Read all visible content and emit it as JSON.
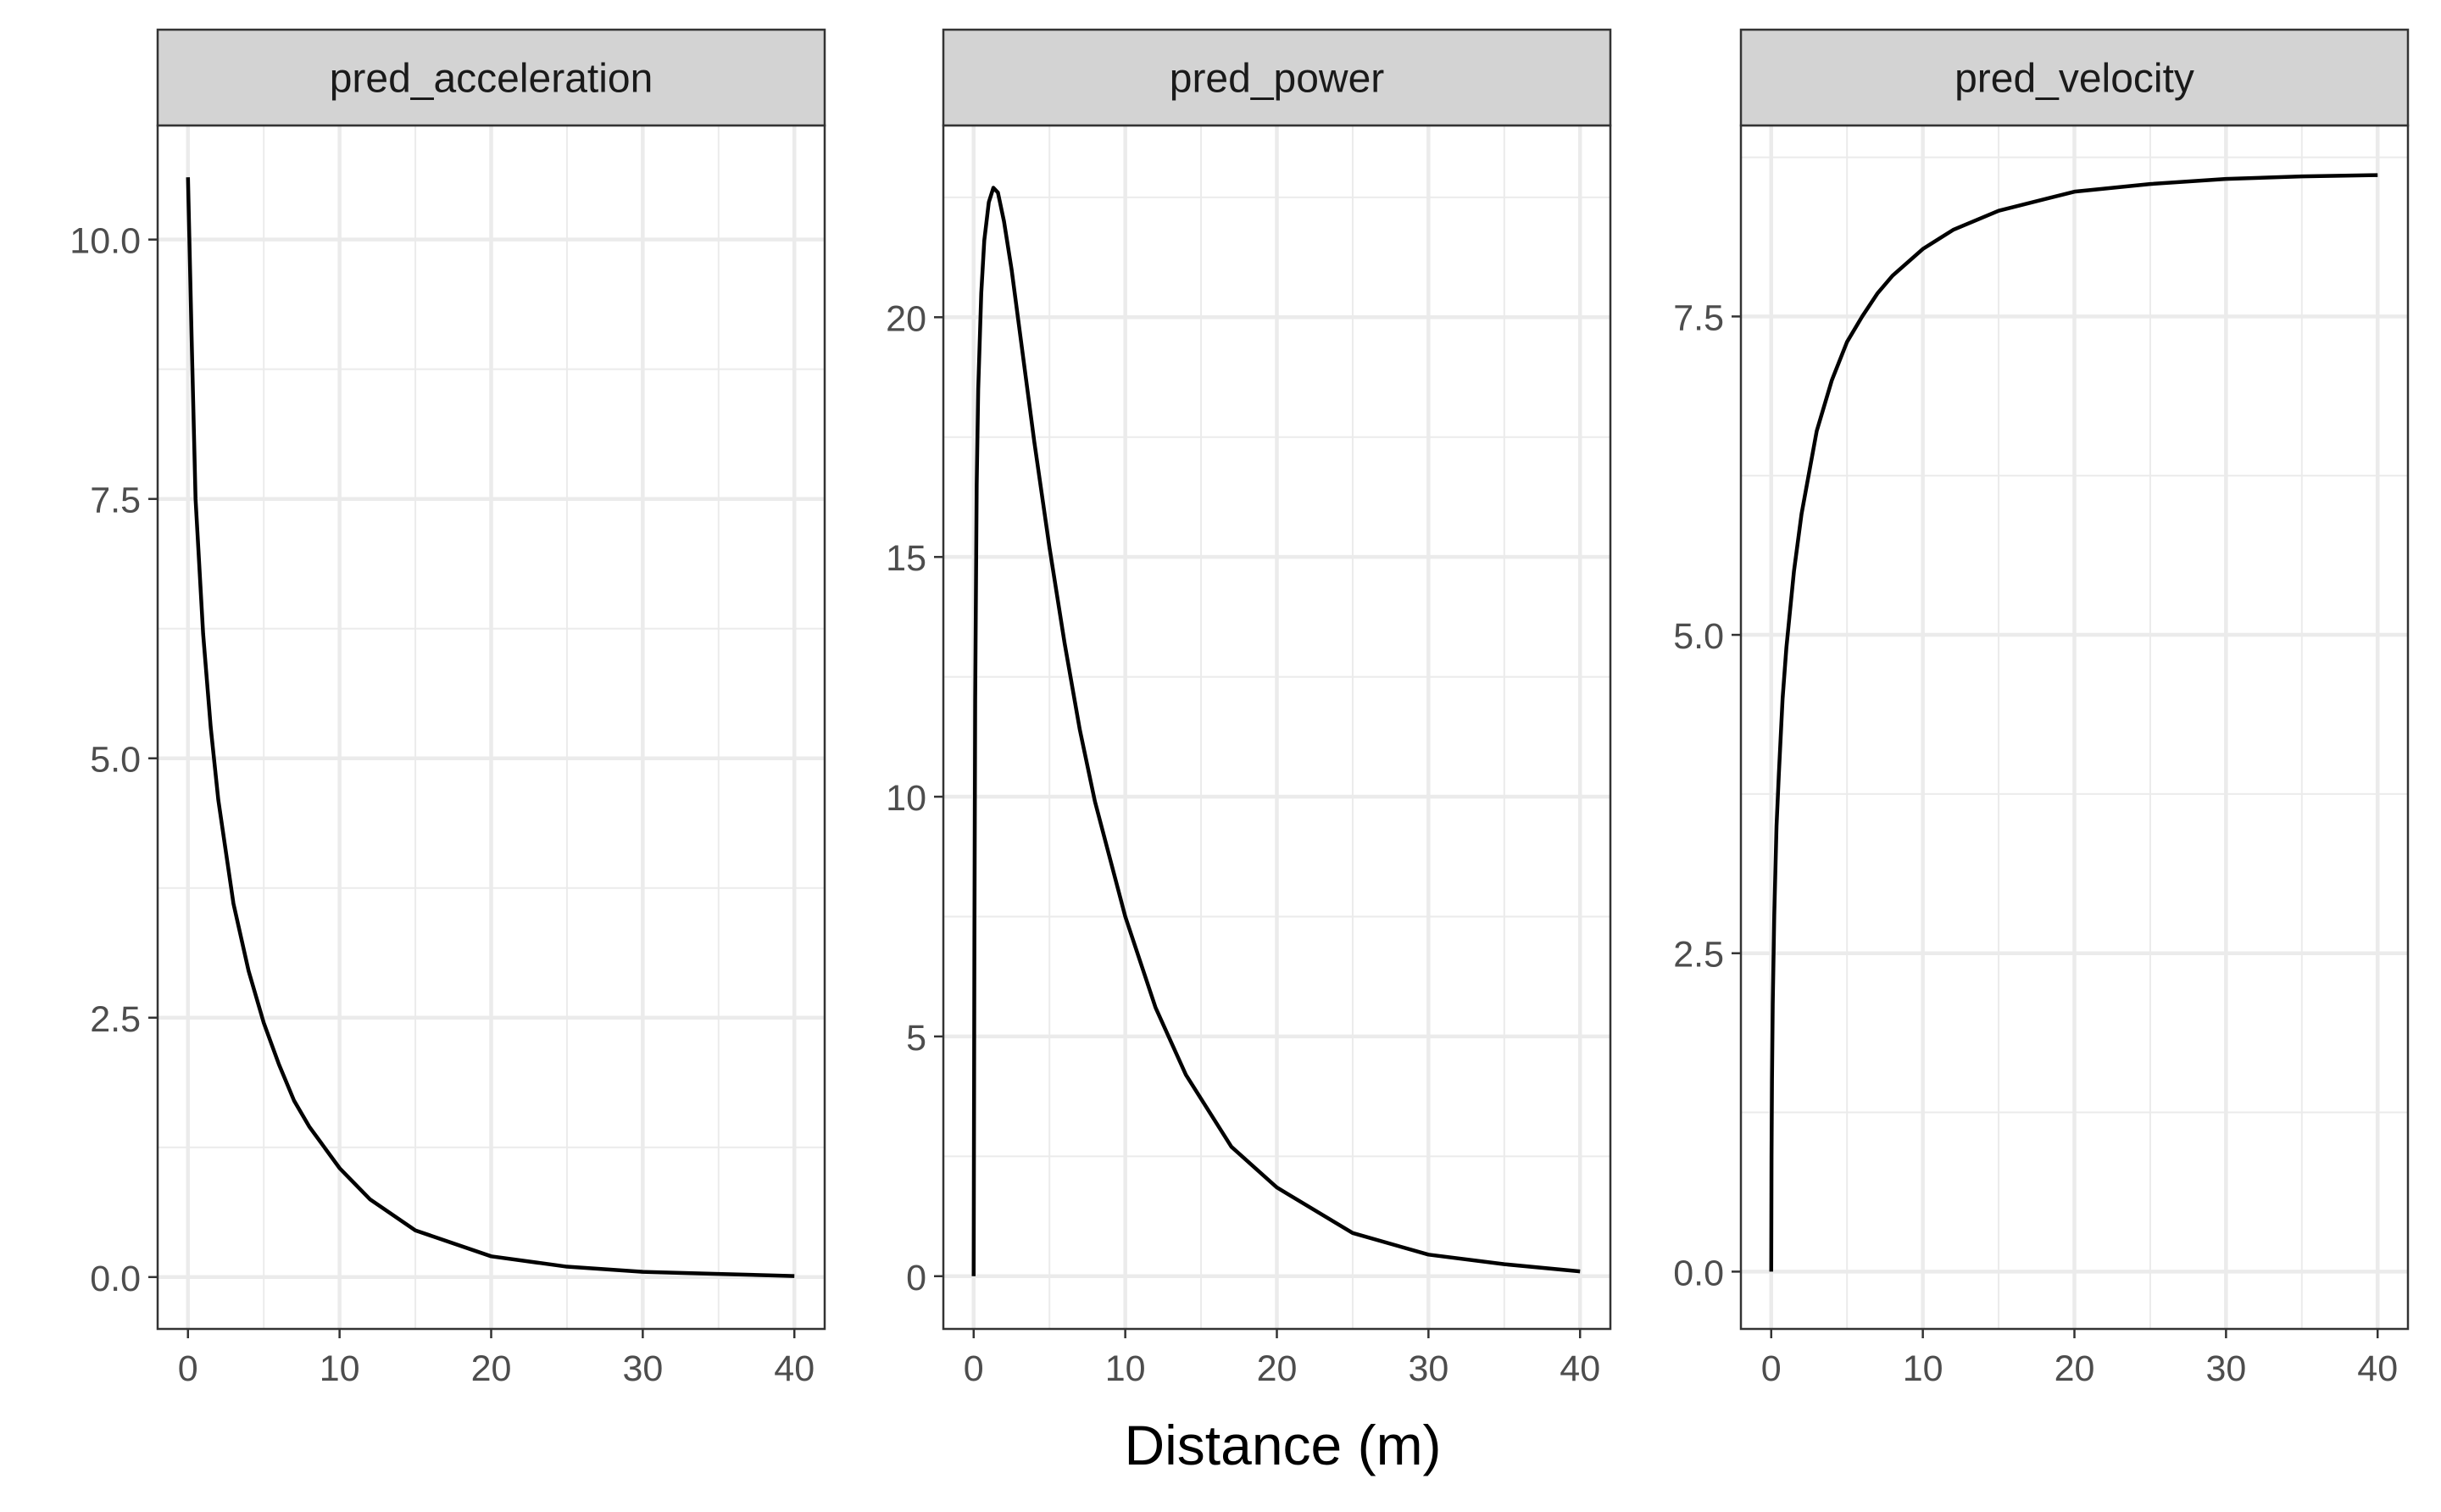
{
  "chart_data": {
    "type": "line",
    "xlabel": "Distance (m)",
    "facets": [
      {
        "strip_label": "pred_acceleration",
        "xlim": [
          -2,
          42
        ],
        "ylim": [
          -0.5,
          11.1
        ],
        "x_ticks": [
          0,
          10,
          20,
          30,
          40
        ],
        "x_tick_labels": [
          "0",
          "10",
          "20",
          "30",
          "40"
        ],
        "y_ticks": [
          0,
          2.5,
          5,
          7.5,
          10
        ],
        "y_tick_labels": [
          "0.0",
          "2.5",
          "5.0",
          "7.5",
          "10.0"
        ],
        "series": [
          {
            "x": [
              0,
              0.25,
              0.5,
              1,
              1.5,
              2,
              3,
              4,
              5,
              6,
              7,
              8,
              10,
              12,
              15,
              20,
              25,
              30,
              35,
              40
            ],
            "y": [
              10.6,
              9.0,
              7.5,
              6.2,
              5.3,
              4.6,
              3.6,
              2.95,
              2.45,
              2.05,
              1.7,
              1.45,
              1.05,
              0.75,
              0.45,
              0.2,
              0.1,
              0.05,
              0.03,
              0.01
            ]
          }
        ]
      },
      {
        "strip_label": "pred_power",
        "xlim": [
          -2,
          42
        ],
        "ylim": [
          -1.1,
          24.0
        ],
        "x_ticks": [
          0,
          10,
          20,
          30,
          40
        ],
        "x_tick_labels": [
          "0",
          "10",
          "20",
          "30",
          "40"
        ],
        "y_ticks": [
          0,
          5,
          10,
          15,
          20
        ],
        "y_tick_labels": [
          "0",
          "5",
          "10",
          "15",
          "20"
        ],
        "series": [
          {
            "x": [
              0,
              0.05,
              0.1,
              0.2,
              0.3,
              0.5,
              0.7,
              1,
              1.3,
              1.6,
              2,
              2.5,
              3,
              4,
              5,
              6,
              7,
              8,
              10,
              12,
              14,
              17,
              20,
              25,
              30,
              35,
              40
            ],
            "y": [
              0,
              7,
              12,
              16.5,
              18.5,
              20.5,
              21.6,
              22.4,
              22.7,
              22.6,
              22.0,
              21.0,
              19.8,
              17.4,
              15.2,
              13.2,
              11.4,
              9.9,
              7.5,
              5.6,
              4.2,
              2.7,
              1.85,
              0.9,
              0.45,
              0.25,
              0.1
            ]
          }
        ]
      },
      {
        "strip_label": "pred_velocity",
        "xlim": [
          -2,
          42
        ],
        "ylim": [
          -0.45,
          9.0
        ],
        "x_ticks": [
          0,
          10,
          20,
          30,
          40
        ],
        "x_tick_labels": [
          "0",
          "10",
          "20",
          "30",
          "40"
        ],
        "y_ticks": [
          0,
          2.5,
          5,
          7.5
        ],
        "y_tick_labels": [
          "0.0",
          "2.5",
          "5.0",
          "7.5"
        ],
        "series": [
          {
            "x": [
              0,
              0.02,
              0.05,
              0.1,
              0.2,
              0.35,
              0.5,
              0.75,
              1,
              1.5,
              2,
              3,
              4,
              5,
              6,
              7,
              8,
              10,
              12,
              15,
              20,
              25,
              30,
              35,
              40
            ],
            "y": [
              0,
              0.9,
              1.5,
              2.1,
              2.8,
              3.5,
              3.9,
              4.5,
              4.9,
              5.5,
              5.95,
              6.6,
              7.0,
              7.3,
              7.5,
              7.68,
              7.82,
              8.03,
              8.18,
              8.33,
              8.48,
              8.54,
              8.58,
              8.6,
              8.61
            ]
          }
        ]
      }
    ],
    "grid": true,
    "line_color": "#000000",
    "strip_fill": "#d3d3d3",
    "grid_color": "#ebebeb"
  }
}
